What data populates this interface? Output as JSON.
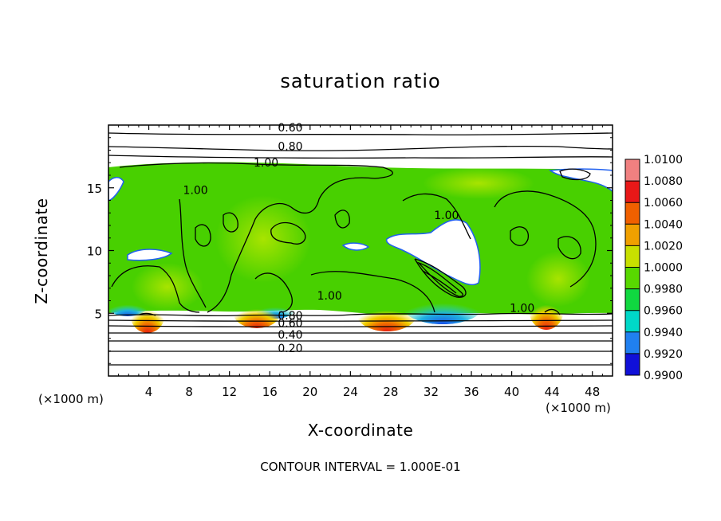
{
  "chart_data": {
    "type": "heatmap",
    "title": "saturation ratio",
    "xlabel": "X-coordinate",
    "ylabel": "Z-coordinate",
    "x_unit_label": "(×1000 m)",
    "x_range": [
      0,
      50
    ],
    "y_range": [
      0,
      20
    ],
    "x_ticks": [
      4,
      8,
      12,
      16,
      20,
      24,
      28,
      32,
      36,
      40,
      44,
      48
    ],
    "x_tick_labels": [
      "4",
      "8",
      "12",
      "16",
      "20",
      "24",
      "28",
      "32",
      "36",
      "40",
      "44",
      "48"
    ],
    "y_ticks": [
      5,
      10,
      15
    ],
    "y_tick_labels": [
      "5",
      "10",
      "15"
    ],
    "contour_interval_text": "CONTOUR INTERVAL = 1.000E-01",
    "contour_labels": [
      {
        "text": "0.60",
        "x": 16.8,
        "y": 19.5
      },
      {
        "text": "0.80",
        "x": 16.8,
        "y": 18.0
      },
      {
        "text": "1.00",
        "x": 14.4,
        "y": 16.7
      },
      {
        "text": "1.00",
        "x": 7.4,
        "y": 14.5
      },
      {
        "text": "1.00",
        "x": 32.3,
        "y": 12.5
      },
      {
        "text": "1.00",
        "x": 20.7,
        "y": 6.1
      },
      {
        "text": "1.00",
        "x": 39.8,
        "y": 5.1
      },
      {
        "text": "0.80",
        "x": 16.8,
        "y": 4.5
      },
      {
        "text": "0.60",
        "x": 16.8,
        "y": 3.9
      },
      {
        "text": "0.40",
        "x": 16.8,
        "y": 3.0
      },
      {
        "text": "0.20",
        "x": 16.8,
        "y": 1.9
      }
    ],
    "colorbar": {
      "min": 0.99,
      "max": 1.01,
      "levels": [
        "1.0100",
        "1.0080",
        "1.0060",
        "1.0040",
        "1.0020",
        "1.0000",
        "0.9980",
        "0.9960",
        "0.9940",
        "0.9920",
        "0.9900"
      ],
      "colors": [
        "#f08080",
        "#e81818",
        "#f06000",
        "#f0a000",
        "#c8e000",
        "#58d800",
        "#10d840",
        "#00d8c8",
        "#2080f0",
        "#1010d8",
        "#7010a0"
      ]
    },
    "field_colors": {
      "background": "#ffffff",
      "dominant": "#48d000",
      "light_green": "#8ee000",
      "cyan": "#20e0c0",
      "blue": "#2060f0",
      "warm": "#f0c000",
      "hot": "#e83010",
      "contour": "#000000"
    }
  }
}
